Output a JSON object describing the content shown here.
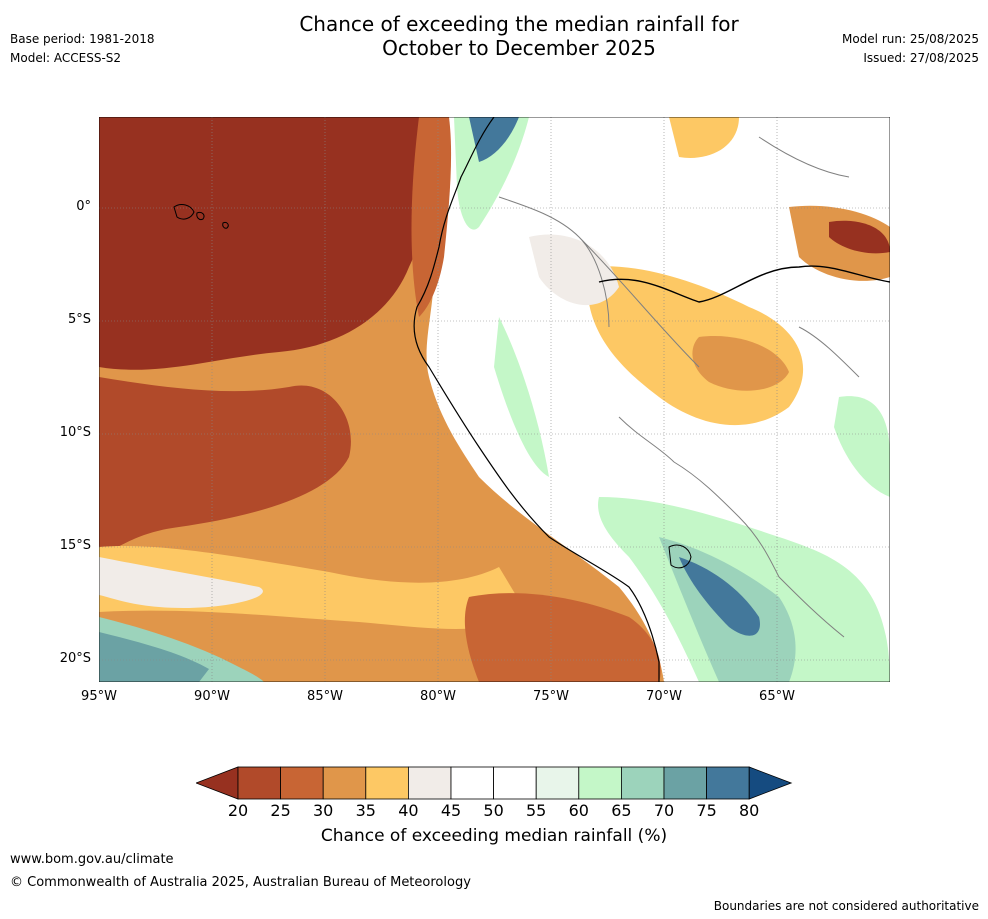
{
  "title": {
    "line1": "Chance of exceeding the median rainfall for",
    "line2": "October to December 2025"
  },
  "meta_left": {
    "base_period": "Base period: 1981-2018",
    "model": "Model: ACCESS-S2"
  },
  "meta_right": {
    "model_run": "Model run: 25/08/2025",
    "issued": "Issued: 27/08/2025"
  },
  "map": {
    "lat_labels": [
      "0°",
      "5°S",
      "10°S",
      "15°S",
      "20°S"
    ],
    "lon_labels": [
      "95°W",
      "90°W",
      "85°W",
      "80°W",
      "75°W",
      "70°W",
      "65°W"
    ],
    "extent": {
      "lon_min": -95,
      "lon_max": -60,
      "lat_min": -21,
      "lat_max": 4
    }
  },
  "colorbar": {
    "ticks": [
      "20",
      "25",
      "30",
      "35",
      "40",
      "45",
      "50",
      "55",
      "60",
      "65",
      "70",
      "75",
      "80"
    ],
    "colors": [
      "#973120",
      "#b14a2a",
      "#c86534",
      "#e0964a",
      "#fdc864",
      "#f1ece8",
      "#ffffff",
      "#ffffff",
      "#e8f5ea",
      "#c4f7c8",
      "#9cd3bb",
      "#6ba2a4",
      "#43789b",
      "#154b80"
    ],
    "label": "Chance of exceeding median rainfall (%)"
  },
  "footer": {
    "url": "www.bom.gov.au/climate",
    "copyright": "© Commonwealth of Australia 2025, Australian Bureau of Meteorology",
    "note": "Boundaries are not considered authoritative"
  }
}
